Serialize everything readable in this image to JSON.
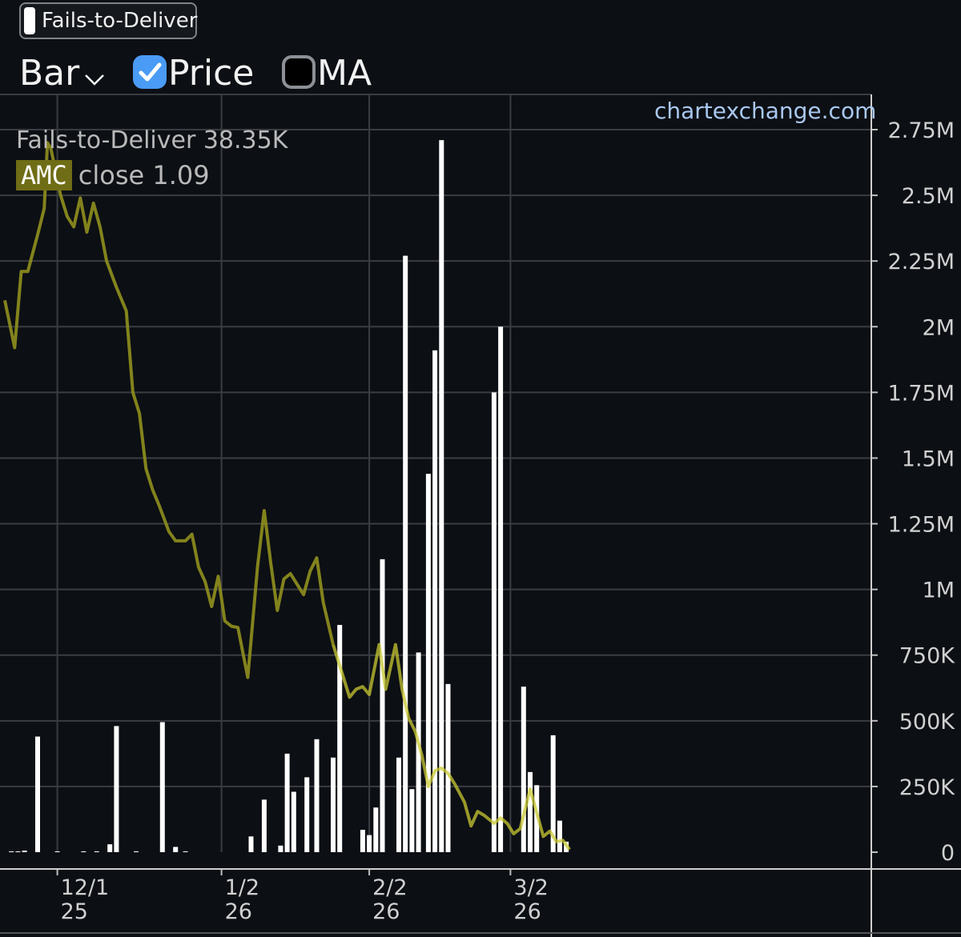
{
  "header": {
    "series_toggle_label": "Fails-to-Deliver",
    "bar_select_label": "Bar",
    "price_label": "Price",
    "price_checked": true,
    "ma_label": "MA",
    "ma_checked": false
  },
  "watermark": "chartexchange.com",
  "legend": {
    "ftd_text": "Fails-to-Deliver 38.35K",
    "ticker": "AMC",
    "close_text": "close 1.09"
  },
  "colors": {
    "background": "#0c0f14",
    "grid": "#3a3d42",
    "bars": "#ffffff",
    "price_line": "#8a8a1e",
    "price_line_recent": "#c8c832",
    "accent_checkbox": "#4a9bf5",
    "watermark": "#a9c8f0"
  },
  "chart_data": {
    "type": "bar",
    "title": "Fails-to-Deliver",
    "ylim": [
      0,
      2750000
    ],
    "y_ticks": [
      {
        "value": 0,
        "label": "0"
      },
      {
        "value": 250000,
        "label": "250K"
      },
      {
        "value": 500000,
        "label": "500K"
      },
      {
        "value": 750000,
        "label": "750K"
      },
      {
        "value": 1000000,
        "label": "1M"
      },
      {
        "value": 1250000,
        "label": "1.25M"
      },
      {
        "value": 1500000,
        "label": "1.5M"
      },
      {
        "value": 1750000,
        "label": "1.75M"
      },
      {
        "value": 2000000,
        "label": "2M"
      },
      {
        "value": 2250000,
        "label": "2.25M"
      },
      {
        "value": 2500000,
        "label": "2.5M"
      },
      {
        "value": 2750000,
        "label": "2.75M"
      }
    ],
    "x_range": [
      0,
      110
    ],
    "x_ticks": [
      {
        "x": 8,
        "line1": "12/1",
        "line2": "25"
      },
      {
        "x": 33,
        "line1": "1/2",
        "line2": "26"
      },
      {
        "x": 55.5,
        "line1": "2/2",
        "line2": "26"
      },
      {
        "x": 77,
        "line1": "3/2",
        "line2": "26"
      }
    ],
    "grid": true,
    "bars": [
      {
        "x": 1,
        "value": 3000
      },
      {
        "x": 2,
        "value": 3000
      },
      {
        "x": 3,
        "value": 6000
      },
      {
        "x": 5,
        "value": 440000
      },
      {
        "x": 8,
        "value": 2000
      },
      {
        "x": 12,
        "value": 3000
      },
      {
        "x": 14,
        "value": 3000
      },
      {
        "x": 16,
        "value": 30000
      },
      {
        "x": 17,
        "value": 480000
      },
      {
        "x": 20,
        "value": 3000
      },
      {
        "x": 24,
        "value": 495000
      },
      {
        "x": 26,
        "value": 20000
      },
      {
        "x": 27.5,
        "value": 3000
      },
      {
        "x": 37.5,
        "value": 60000
      },
      {
        "x": 39.5,
        "value": 200000
      },
      {
        "x": 42,
        "value": 25000
      },
      {
        "x": 43,
        "value": 375000
      },
      {
        "x": 44,
        "value": 230000
      },
      {
        "x": 46,
        "value": 285000
      },
      {
        "x": 47.5,
        "value": 430000
      },
      {
        "x": 50,
        "value": 360000
      },
      {
        "x": 51,
        "value": 865000
      },
      {
        "x": 54.5,
        "value": 85000
      },
      {
        "x": 55.5,
        "value": 65000
      },
      {
        "x": 56.5,
        "value": 170000
      },
      {
        "x": 57.5,
        "value": 1115000
      },
      {
        "x": 60,
        "value": 360000
      },
      {
        "x": 61,
        "value": 2270000
      },
      {
        "x": 62,
        "value": 240000
      },
      {
        "x": 63,
        "value": 760000
      },
      {
        "x": 64.5,
        "value": 1440000
      },
      {
        "x": 65.5,
        "value": 1910000
      },
      {
        "x": 66.5,
        "value": 2710000
      },
      {
        "x": 67.5,
        "value": 640000
      },
      {
        "x": 74.5,
        "value": 1750000
      },
      {
        "x": 75.5,
        "value": 2000000
      },
      {
        "x": 79,
        "value": 630000
      },
      {
        "x": 80,
        "value": 305000
      },
      {
        "x": 81,
        "value": 255000
      },
      {
        "x": 83.5,
        "value": 445000
      },
      {
        "x": 84.5,
        "value": 120000
      },
      {
        "x": 85.5,
        "value": 40000
      }
    ],
    "price_line": [
      {
        "x": 0,
        "y": 2100000
      },
      {
        "x": 1.5,
        "y": 1920000
      },
      {
        "x": 2.5,
        "y": 2210000
      },
      {
        "x": 3.5,
        "y": 2210000
      },
      {
        "x": 5,
        "y": 2350000
      },
      {
        "x": 6,
        "y": 2450000
      },
      {
        "x": 6.5,
        "y": 2700000
      },
      {
        "x": 7,
        "y": 2680000
      },
      {
        "x": 8.5,
        "y": 2500000
      },
      {
        "x": 9.5,
        "y": 2420000
      },
      {
        "x": 10.5,
        "y": 2380000
      },
      {
        "x": 11.5,
        "y": 2490000
      },
      {
        "x": 12.5,
        "y": 2360000
      },
      {
        "x": 13.5,
        "y": 2470000
      },
      {
        "x": 14.5,
        "y": 2380000
      },
      {
        "x": 15.5,
        "y": 2250000
      },
      {
        "x": 17,
        "y": 2150000
      },
      {
        "x": 18.5,
        "y": 2060000
      },
      {
        "x": 19.5,
        "y": 1750000
      },
      {
        "x": 20.5,
        "y": 1670000
      },
      {
        "x": 21.5,
        "y": 1460000
      },
      {
        "x": 22.5,
        "y": 1380000
      },
      {
        "x": 23.5,
        "y": 1320000
      },
      {
        "x": 25,
        "y": 1220000
      },
      {
        "x": 26,
        "y": 1185000
      },
      {
        "x": 27.5,
        "y": 1185000
      },
      {
        "x": 28.5,
        "y": 1210000
      },
      {
        "x": 29.5,
        "y": 1085000
      },
      {
        "x": 30.5,
        "y": 1030000
      },
      {
        "x": 31.5,
        "y": 935000
      },
      {
        "x": 32.5,
        "y": 1050000
      },
      {
        "x": 33.5,
        "y": 880000
      },
      {
        "x": 34.5,
        "y": 860000
      },
      {
        "x": 35.5,
        "y": 855000
      },
      {
        "x": 37,
        "y": 665000
      },
      {
        "x": 38.5,
        "y": 1090000
      },
      {
        "x": 39.5,
        "y": 1300000
      },
      {
        "x": 40.5,
        "y": 1100000
      },
      {
        "x": 41.5,
        "y": 920000
      },
      {
        "x": 42.5,
        "y": 1040000
      },
      {
        "x": 43.5,
        "y": 1060000
      },
      {
        "x": 44.5,
        "y": 1020000
      },
      {
        "x": 45.5,
        "y": 980000
      },
      {
        "x": 46.5,
        "y": 1070000
      },
      {
        "x": 47.5,
        "y": 1120000
      },
      {
        "x": 48.5,
        "y": 950000
      },
      {
        "x": 50,
        "y": 790000
      },
      {
        "x": 51.5,
        "y": 670000
      },
      {
        "x": 52.5,
        "y": 590000
      },
      {
        "x": 53.5,
        "y": 620000
      },
      {
        "x": 54.5,
        "y": 630000
      },
      {
        "x": 55.5,
        "y": 600000
      },
      {
        "x": 57,
        "y": 790000
      },
      {
        "x": 58,
        "y": 620000
      },
      {
        "x": 59.5,
        "y": 790000
      },
      {
        "x": 60.5,
        "y": 620000
      },
      {
        "x": 61.5,
        "y": 510000
      },
      {
        "x": 62.5,
        "y": 460000
      },
      {
        "x": 63.5,
        "y": 370000
      },
      {
        "x": 64.5,
        "y": 250000
      },
      {
        "x": 65.5,
        "y": 310000
      },
      {
        "x": 66.5,
        "y": 320000
      },
      {
        "x": 67.5,
        "y": 300000
      },
      {
        "x": 68.5,
        "y": 260000
      },
      {
        "x": 70,
        "y": 190000
      },
      {
        "x": 71,
        "y": 100000
      },
      {
        "x": 72,
        "y": 155000
      },
      {
        "x": 73,
        "y": 140000
      },
      {
        "x": 74.5,
        "y": 110000
      },
      {
        "x": 75.5,
        "y": 130000
      },
      {
        "x": 76.5,
        "y": 110000
      },
      {
        "x": 77.5,
        "y": 70000
      },
      {
        "x": 78.5,
        "y": 90000
      },
      {
        "x": 80,
        "y": 240000
      },
      {
        "x": 81,
        "y": 150000
      },
      {
        "x": 82,
        "y": 60000
      },
      {
        "x": 83,
        "y": 80000
      },
      {
        "x": 84,
        "y": 40000
      },
      {
        "x": 85,
        "y": 45000
      },
      {
        "x": 86,
        "y": 10000
      }
    ],
    "price_line_recent_from_x": 50
  }
}
